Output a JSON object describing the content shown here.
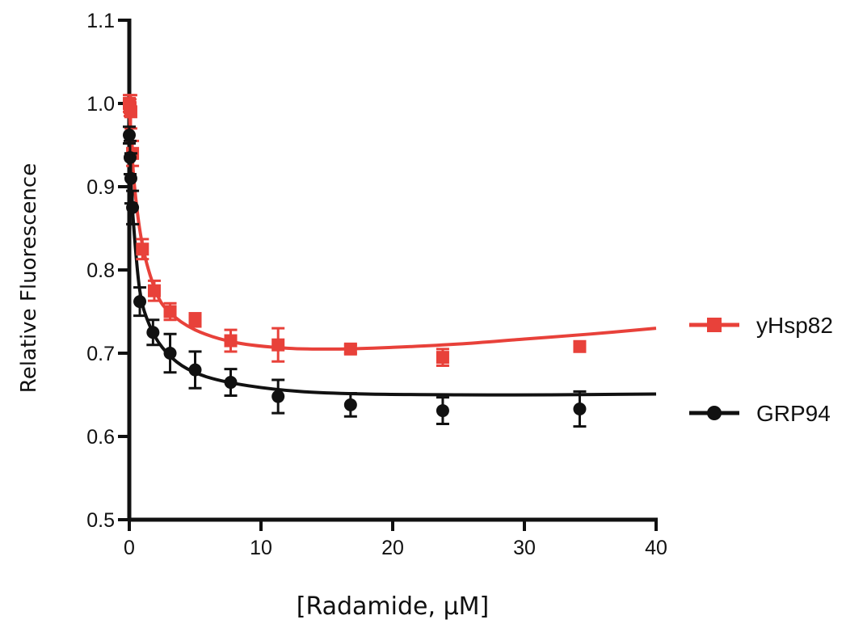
{
  "chart_data": {
    "type": "scatter",
    "title": "",
    "xlabel": "[Radamide, μM]",
    "ylabel": "Relative Fluorescence",
    "xlim": [
      0,
      40
    ],
    "ylim": [
      0.5,
      1.1
    ],
    "x_ticks": [
      0,
      10,
      20,
      30,
      40
    ],
    "y_ticks": [
      0.5,
      0.6,
      0.7,
      0.8,
      0.9,
      1.0,
      1.1
    ],
    "x_tick_labels": [
      "0",
      "10",
      "20",
      "30",
      "40"
    ],
    "y_tick_labels": [
      "0.5",
      "0.6",
      "0.7",
      "0.8",
      "0.9",
      "1.0",
      "1.1"
    ],
    "grid": false,
    "legend_position": "right",
    "series": [
      {
        "name": "yHsp82",
        "color": "#e8413a",
        "marker": "square",
        "x": [
          0,
          0.06,
          0.12,
          0.25,
          1.0,
          1.9,
          3.1,
          5.0,
          7.7,
          11.3,
          16.8,
          23.8,
          34.2
        ],
        "y": [
          1.0,
          0.995,
          0.99,
          0.94,
          0.825,
          0.775,
          0.75,
          0.74,
          0.715,
          0.71,
          0.705,
          0.695,
          0.708
        ],
        "err": [
          0.01,
          0.01,
          0.02,
          0.015,
          0.012,
          0.012,
          0.01,
          0.008,
          0.013,
          0.02,
          0.005,
          0.01,
          0.0
        ],
        "fit": [
          [
            0,
            0.99
          ],
          [
            0.4,
            0.9
          ],
          [
            1.0,
            0.83
          ],
          [
            2.0,
            0.775
          ],
          [
            3.0,
            0.75
          ],
          [
            5.0,
            0.728
          ],
          [
            8.0,
            0.713
          ],
          [
            12.0,
            0.706
          ],
          [
            16.0,
            0.705
          ],
          [
            20.0,
            0.707
          ],
          [
            25.0,
            0.711
          ],
          [
            30.0,
            0.717
          ],
          [
            35.0,
            0.723
          ],
          [
            40.0,
            0.73
          ]
        ]
      },
      {
        "name": "GRP94",
        "color": "#111111",
        "marker": "circle",
        "x": [
          0,
          0.06,
          0.12,
          0.25,
          0.8,
          1.8,
          3.1,
          5.0,
          7.7,
          11.3,
          16.8,
          23.8,
          34.2
        ],
        "y": [
          0.962,
          0.935,
          0.91,
          0.875,
          0.762,
          0.725,
          0.7,
          0.68,
          0.665,
          0.648,
          0.638,
          0.631,
          0.633
        ],
        "err": [
          0.01,
          0.02,
          0.03,
          0.02,
          0.017,
          0.015,
          0.023,
          0.022,
          0.016,
          0.02,
          0.014,
          0.016,
          0.021
        ],
        "fit": [
          [
            0,
            0.94
          ],
          [
            0.3,
            0.86
          ],
          [
            0.8,
            0.775
          ],
          [
            1.5,
            0.735
          ],
          [
            2.5,
            0.707
          ],
          [
            4.0,
            0.685
          ],
          [
            6.0,
            0.671
          ],
          [
            9.0,
            0.661
          ],
          [
            13.0,
            0.654
          ],
          [
            18.0,
            0.651
          ],
          [
            25.0,
            0.65
          ],
          [
            32.0,
            0.65
          ],
          [
            40.0,
            0.651
          ]
        ]
      }
    ]
  }
}
